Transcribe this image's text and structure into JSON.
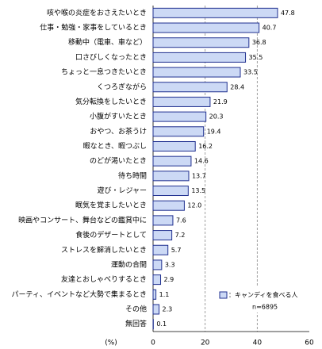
{
  "chart_data": {
    "type": "barh",
    "categories": [
      "咳や喉の炎症をおさえたいとき",
      "仕事・勉強・家事をしているとき",
      "移動中（電車、車など）",
      "口さびしくなったとき",
      "ちょっと一息つきたいとき",
      "くつろぎながら",
      "気分転換をしたいとき",
      "小腹がすいたとき",
      "おやつ、お茶うけ",
      "暇なとき、暇つぶし",
      "のどが渇いたとき",
      "待ち時間",
      "遊び・レジャー",
      "眠気を覚ましたいとき",
      "映画やコンサート、舞台などの鑑賞中に",
      "食後のデザートとして",
      "ストレスを解消したいとき",
      "運動の合間",
      "友達とおしゃべりするとき",
      "パーティ、イベントなど大勢で集まるとき",
      "その他",
      "無回答"
    ],
    "series": [
      {
        "name": "：キャンディを食べる人",
        "color": "#ccd9f5",
        "values": [
          47.8,
          40.7,
          36.8,
          35.5,
          33.5,
          28.4,
          21.9,
          20.3,
          19.4,
          16.2,
          14.6,
          13.7,
          13.5,
          12.0,
          7.6,
          7.2,
          5.7,
          3.3,
          2.9,
          1.1,
          2.3,
          0.1
        ],
        "value_labels": [
          "47.8",
          "40.7",
          "36.8",
          "35.5",
          "33.5",
          "28.4",
          "21.9",
          "20.3",
          "19.4",
          "16.2",
          "14.6",
          "13.7",
          "13.5",
          "12.0",
          "7.6",
          "7.2",
          "5.7",
          "3.3",
          "2.9",
          "1.1",
          "2.3",
          "0.1"
        ]
      }
    ],
    "note": "n=6895",
    "x_label": "(%)",
    "xlim": [
      0,
      60
    ],
    "xticks": [
      0,
      20,
      40,
      60
    ],
    "grid": true
  }
}
